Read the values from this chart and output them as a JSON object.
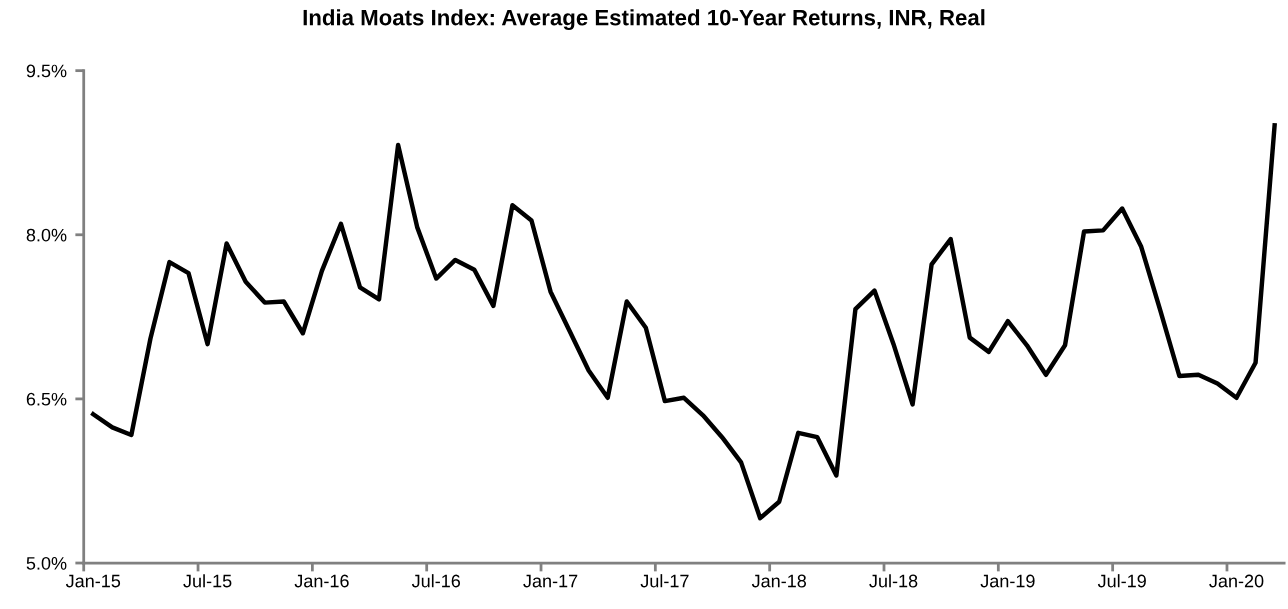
{
  "chart_data": {
    "type": "line",
    "title": "India Moats Index: Average Estimated 10-Year Returns, INR, Real",
    "categories": [
      "Jan-15",
      null,
      null,
      null,
      null,
      null,
      "Jul-15",
      null,
      null,
      null,
      null,
      null,
      "Jan-16",
      null,
      null,
      null,
      null,
      null,
      "Jul-16",
      null,
      null,
      null,
      null,
      null,
      "Jan-17",
      null,
      null,
      null,
      null,
      null,
      "Jul-17",
      null,
      null,
      null,
      null,
      null,
      "Jan-18",
      null,
      null,
      null,
      null,
      null,
      "Jul-18",
      null,
      null,
      null,
      null,
      null,
      "Jan-19",
      null,
      null,
      null,
      null,
      null,
      "Jul-19",
      null,
      null,
      null,
      null,
      null,
      "Jan-20",
      null,
      null
    ],
    "series": [
      {
        "color": "#000000",
        "values": [
          6.36,
          6.24,
          6.17,
          7.05,
          7.75,
          7.65,
          7.0,
          7.92,
          7.57,
          7.38,
          7.39,
          7.1,
          7.67,
          8.1,
          7.52,
          7.41,
          8.82,
          8.07,
          7.6,
          7.77,
          7.68,
          7.35,
          8.27,
          8.13,
          7.48,
          7.12,
          6.76,
          6.51,
          7.39,
          7.15,
          6.48,
          6.51,
          6.35,
          6.15,
          5.92,
          5.41,
          5.56,
          6.19,
          6.15,
          5.8,
          7.32,
          7.49,
          7.0,
          6.45,
          7.73,
          7.96,
          7.06,
          6.93,
          7.21,
          6.99,
          6.72,
          6.99,
          8.03,
          8.04,
          8.24,
          7.89,
          7.31,
          6.71,
          6.72,
          6.64,
          6.51,
          6.83,
          9.0
        ]
      }
    ],
    "ylim": [
      5.0,
      9.5
    ],
    "yticks": [
      {
        "value": 5.0,
        "label": "5.0%"
      },
      {
        "value": 6.5,
        "label": "6.5%"
      },
      {
        "value": 8.0,
        "label": "8.0%"
      },
      {
        "value": 9.5,
        "label": "9.5%"
      }
    ],
    "grid": false,
    "legend": false,
    "marker": "none",
    "line_style": "solid"
  }
}
